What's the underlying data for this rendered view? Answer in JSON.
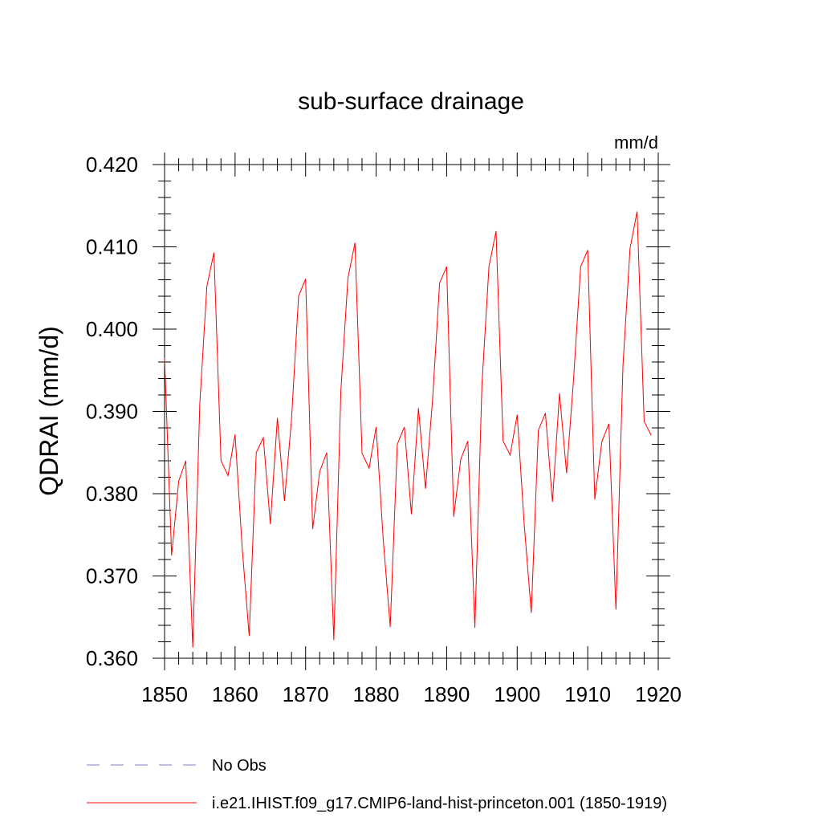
{
  "chart_data": {
    "type": "line",
    "title": "sub-surface drainage",
    "units": "mm/d",
    "ylabel": "QDRAI  (mm/d)",
    "xlabel": "",
    "xlim": [
      1850,
      1920
    ],
    "ylim": [
      0.36,
      0.42
    ],
    "x_ticks": [
      1850,
      1860,
      1870,
      1880,
      1890,
      1900,
      1910,
      1920
    ],
    "x_tick_labels": [
      "1850",
      "1860",
      "1870",
      "1880",
      "1890",
      "1900",
      "1910",
      "1920"
    ],
    "y_ticks": [
      0.36,
      0.37,
      0.38,
      0.39,
      0.4,
      0.41,
      0.42
    ],
    "y_tick_labels": [
      "0.360",
      "0.370",
      "0.380",
      "0.390",
      "0.400",
      "0.410",
      "0.420"
    ],
    "grid": false,
    "legend_position": "bottom",
    "series": [
      {
        "name": "i.e21.IHIST.f09_g17.CMIP6-land-hist-princeton.001 (1850-1919)",
        "color": "#ff0000",
        "style": "solid",
        "x": [
          1850,
          1851,
          1852,
          1853,
          1854,
          1855,
          1856,
          1857,
          1858,
          1859,
          1860,
          1861,
          1862,
          1863,
          1864,
          1865,
          1866,
          1867,
          1868,
          1869,
          1870,
          1871,
          1872,
          1873,
          1874,
          1875,
          1876,
          1877,
          1878,
          1879,
          1880,
          1881,
          1882,
          1883,
          1884,
          1885,
          1886,
          1887,
          1888,
          1889,
          1890,
          1891,
          1892,
          1893,
          1894,
          1895,
          1896,
          1897,
          1898,
          1899,
          1900,
          1901,
          1902,
          1903,
          1904,
          1905,
          1906,
          1907,
          1908,
          1909,
          1910,
          1911,
          1912,
          1913,
          1914,
          1915,
          1916,
          1917,
          1918,
          1919
        ],
        "values": [
          0.3965,
          0.3725,
          0.3815,
          0.384,
          0.3613,
          0.391,
          0.4052,
          0.4093,
          0.384,
          0.3822,
          0.3872,
          0.3735,
          0.3627,
          0.385,
          0.3868,
          0.3763,
          0.3892,
          0.3791,
          0.389,
          0.404,
          0.4061,
          0.3757,
          0.3827,
          0.385,
          0.3622,
          0.3925,
          0.4062,
          0.4105,
          0.3849,
          0.3831,
          0.3881,
          0.3745,
          0.3638,
          0.386,
          0.3881,
          0.3775,
          0.3904,
          0.3806,
          0.3914,
          0.4056,
          0.4076,
          0.3772,
          0.3842,
          0.3864,
          0.3637,
          0.3932,
          0.4076,
          0.4119,
          0.3864,
          0.3847,
          0.3896,
          0.3762,
          0.3655,
          0.3877,
          0.3898,
          0.379,
          0.3922,
          0.3825,
          0.394,
          0.4076,
          0.4096,
          0.3793,
          0.3863,
          0.3885,
          0.3659,
          0.3956,
          0.4098,
          0.4143,
          0.3888,
          0.3871
        ]
      }
    ],
    "legend": [
      {
        "label": "No Obs",
        "color": "#7f7fbf",
        "style": "dashed"
      },
      {
        "label": "i.e21.IHIST.f09_g17.CMIP6-land-hist-princeton.001 (1850-1919)",
        "color": "#ff0000",
        "style": "solid"
      }
    ]
  }
}
